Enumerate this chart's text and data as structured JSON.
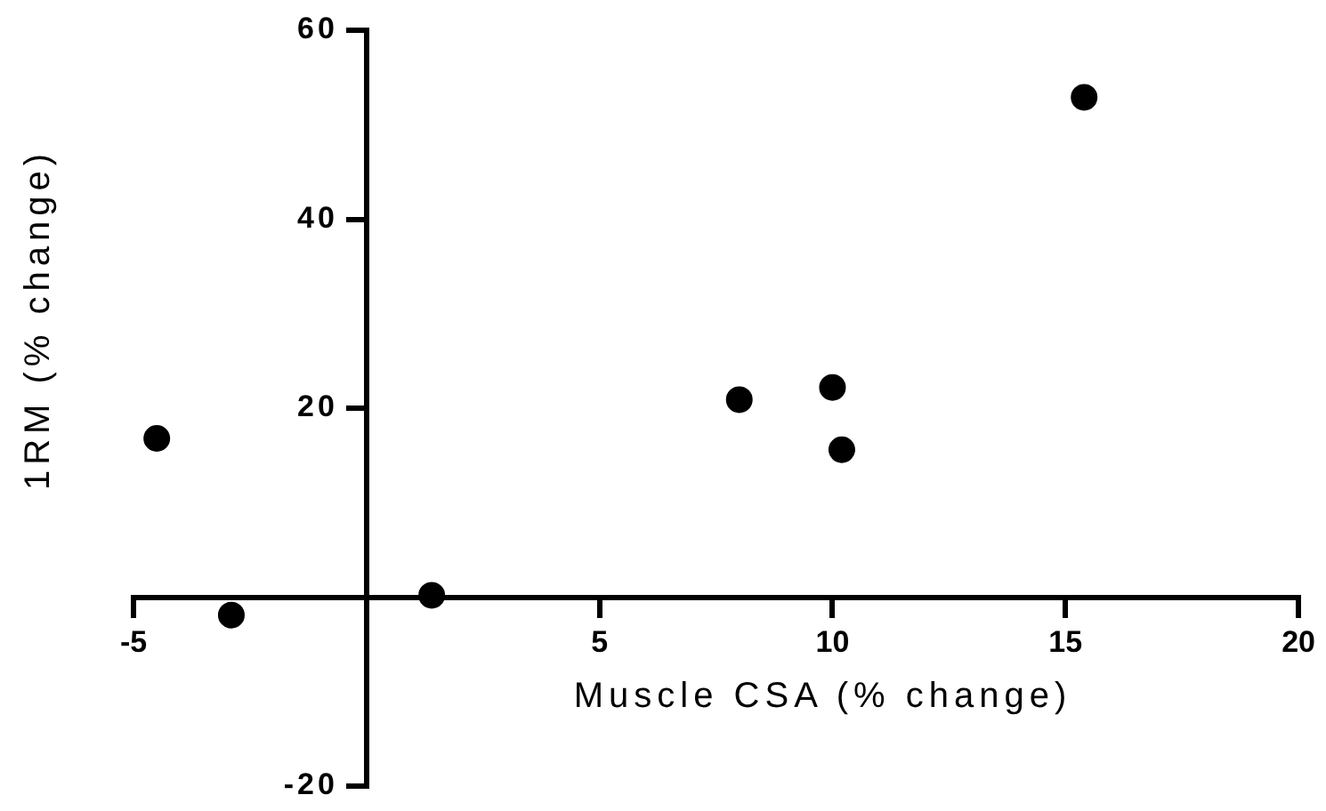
{
  "chart_data": {
    "type": "scatter",
    "xlabel": "Muscle CSA (% change)",
    "ylabel": "1RM (% change)",
    "x": [
      -4.5,
      -2.9,
      1.4,
      8.0,
      10.0,
      10.2,
      15.4
    ],
    "values": [
      16.8,
      -1.9,
      0.2,
      20.9,
      22.2,
      15.6,
      52.9
    ],
    "color": "#000000",
    "marker": "circle",
    "xlim": [
      -5,
      20
    ],
    "xticks": [
      -5,
      5,
      10,
      15,
      20
    ],
    "ylim": [
      -20,
      60
    ],
    "yticks": [
      -20,
      20,
      40,
      60
    ],
    "grid": false,
    "legend": false
  }
}
